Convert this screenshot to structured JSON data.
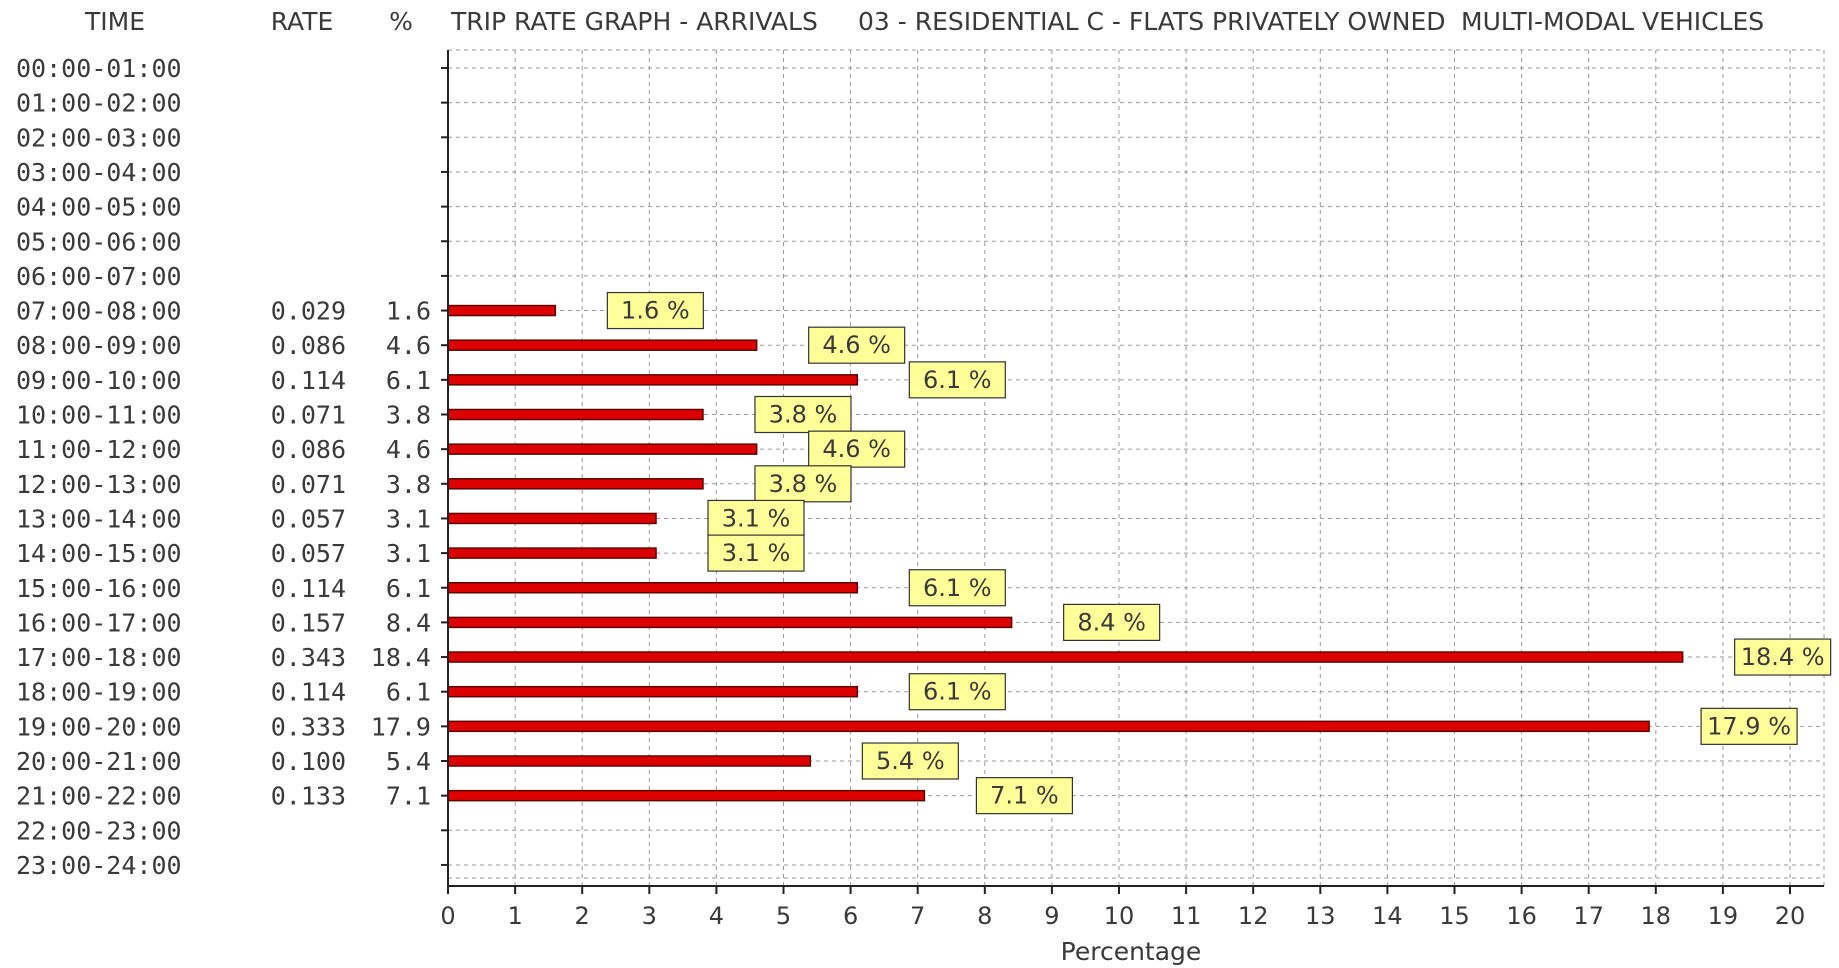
{
  "header": {
    "time_col": "TIME",
    "rate_col": "RATE",
    "pct_col": "%",
    "title_part1": "TRIP RATE GRAPH - ARRIVALS",
    "title_part2": "03 - RESIDENTIAL  C - FLATS PRIVATELY OWNED",
    "title_part3": "MULTI-MODAL  VEHICLES"
  },
  "chart_data": {
    "type": "bar",
    "orientation": "horizontal",
    "title": "TRIP RATE GRAPH - ARRIVALS   03 - RESIDENTIAL  C - FLATS PRIVATELY OWNED   MULTI-MODAL  VEHICLES",
    "xlabel": "Percentage",
    "ylabel": "TIME",
    "xlim": [
      0,
      20
    ],
    "x_ticks": [
      0,
      1,
      2,
      3,
      4,
      5,
      6,
      7,
      8,
      9,
      10,
      11,
      12,
      13,
      14,
      15,
      16,
      17,
      18,
      19,
      20
    ],
    "grid": true,
    "bar_color": "#dd0000",
    "label_box_color": "#ffff99",
    "categories": [
      "00:00-01:00",
      "01:00-02:00",
      "02:00-03:00",
      "03:00-04:00",
      "04:00-05:00",
      "05:00-06:00",
      "06:00-07:00",
      "07:00-08:00",
      "08:00-09:00",
      "09:00-10:00",
      "10:00-11:00",
      "11:00-12:00",
      "12:00-13:00",
      "13:00-14:00",
      "14:00-15:00",
      "15:00-16:00",
      "16:00-17:00",
      "17:00-18:00",
      "18:00-19:00",
      "19:00-20:00",
      "20:00-21:00",
      "21:00-22:00",
      "22:00-23:00",
      "23:00-24:00"
    ],
    "rates": [
      "",
      "",
      "",
      "",
      "",
      "",
      "",
      "0.029",
      "0.086",
      "0.114",
      "0.071",
      "0.086",
      "0.071",
      "0.057",
      "0.057",
      "0.114",
      "0.157",
      "0.343",
      "0.114",
      "0.333",
      "0.100",
      "0.133",
      "",
      ""
    ],
    "percent_text": [
      "",
      "",
      "",
      "",
      "",
      "",
      "",
      "1.6",
      "4.6",
      "6.1",
      "3.8",
      "4.6",
      "3.8",
      "3.1",
      "3.1",
      "6.1",
      "8.4",
      "18.4",
      "6.1",
      "17.9",
      "5.4",
      "7.1",
      "",
      ""
    ],
    "values": [
      null,
      null,
      null,
      null,
      null,
      null,
      null,
      1.6,
      4.6,
      6.1,
      3.8,
      4.6,
      3.8,
      3.1,
      3.1,
      6.1,
      8.4,
      18.4,
      6.1,
      17.9,
      5.4,
      7.1,
      null,
      null
    ],
    "data_labels": [
      "",
      "",
      "",
      "",
      "",
      "",
      "",
      "1.6 %",
      "4.6 %",
      "6.1 %",
      "3.8 %",
      "4.6 %",
      "3.8 %",
      "3.1 %",
      "3.1 %",
      "6.1 %",
      "8.4 %",
      "18.4 %",
      "6.1 %",
      "17.9 %",
      "5.4 %",
      "7.1 %",
      "",
      ""
    ]
  }
}
